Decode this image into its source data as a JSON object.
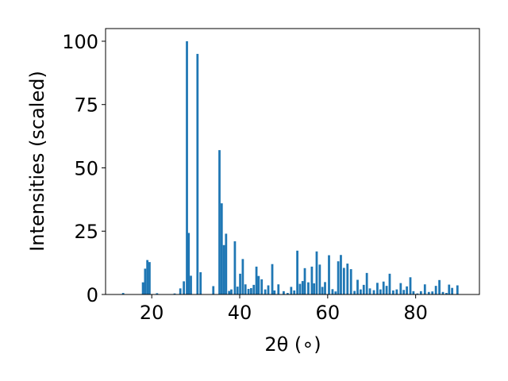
{
  "chart_data": {
    "type": "bar",
    "title": "",
    "xlabel": "2θ (∘)",
    "ylabel": "Intensities (scaled)",
    "xlim": [
      9.5,
      94.5
    ],
    "ylim": [
      0,
      105
    ],
    "xticks": [
      20,
      40,
      60,
      80
    ],
    "yticks": [
      0,
      25,
      50,
      75,
      100
    ],
    "grid": false,
    "bar_color": "#1f77b4",
    "series": [
      {
        "x": [
          13.5,
          18.0,
          18.5,
          19.0,
          19.5,
          21.2,
          25.2,
          26.5,
          27.3,
          28.0,
          28.4,
          28.9,
          30.4,
          31.1,
          34.0,
          35.4,
          35.9,
          36.4,
          36.9,
          37.6,
          38.1,
          38.9,
          39.5,
          40.1,
          40.7,
          41.3,
          42.0,
          42.6,
          43.2,
          43.8,
          44.3,
          45.0,
          45.8,
          46.5,
          47.4,
          47.9,
          48.8,
          50.0,
          50.9,
          51.7,
          52.4,
          53.1,
          53.7,
          54.3,
          54.8,
          55.6,
          56.4,
          56.9,
          57.5,
          58.2,
          58.8,
          59.4,
          60.3,
          61.1,
          61.8,
          62.4,
          63.0,
          63.7,
          64.5,
          65.3,
          66.1,
          66.8,
          67.5,
          68.2,
          68.9,
          69.6,
          70.5,
          71.3,
          72.0,
          72.7,
          73.4,
          74.1,
          74.9,
          75.7,
          76.6,
          77.3,
          78.0,
          78.8,
          79.5,
          80.4,
          81.2,
          82.1,
          83.0,
          83.8,
          84.6,
          85.4,
          86.2,
          87.0,
          87.6,
          88.3,
          89.5
        ],
        "values": [
          0.6,
          4.8,
          10.2,
          13.6,
          12.8,
          0.5,
          0.4,
          2.4,
          5.2,
          100,
          24.3,
          7.4,
          95.0,
          8.8,
          3.3,
          57.0,
          36.0,
          19.5,
          24.0,
          1.4,
          2.0,
          21.0,
          3.1,
          8.2,
          14.0,
          4.0,
          2.2,
          2.5,
          3.8,
          11.0,
          7.3,
          6.0,
          2.0,
          3.6,
          12.0,
          1.6,
          4.0,
          1.3,
          0.6,
          3.0,
          1.6,
          17.3,
          4.2,
          5.3,
          10.4,
          4.8,
          11.0,
          4.4,
          17.0,
          11.8,
          3.0,
          4.9,
          15.5,
          2.1,
          1.2,
          13.1,
          15.6,
          10.5,
          12.2,
          10.0,
          1.4,
          5.8,
          2.0,
          3.8,
          8.5,
          2.4,
          1.7,
          4.6,
          2.0,
          5.1,
          3.4,
          8.2,
          1.6,
          2.0,
          4.5,
          1.8,
          3.2,
          6.8,
          1.3,
          0.4,
          1.3,
          4.0,
          1.0,
          1.2,
          3.4,
          5.7,
          1.0,
          0.6,
          3.9,
          2.6,
          3.6
        ]
      }
    ]
  }
}
